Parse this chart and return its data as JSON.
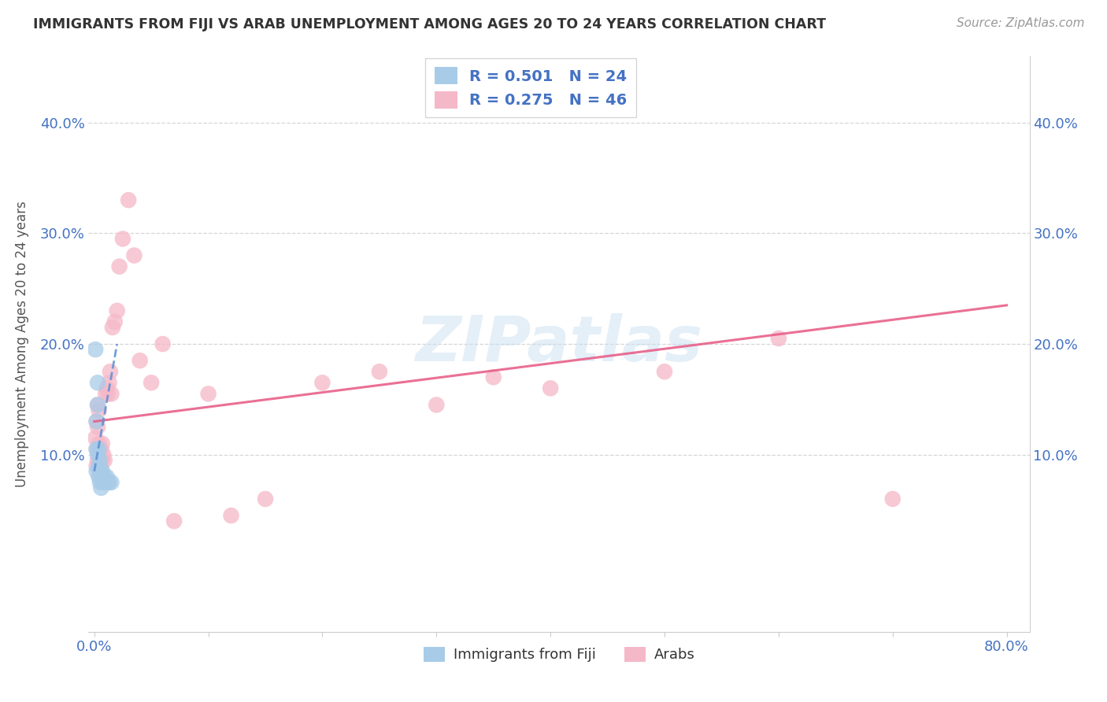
{
  "title": "IMMIGRANTS FROM FIJI VS ARAB UNEMPLOYMENT AMONG AGES 20 TO 24 YEARS CORRELATION CHART",
  "source": "Source: ZipAtlas.com",
  "ylabel": "Unemployment Among Ages 20 to 24 years",
  "fiji_color": "#a8cce8",
  "arab_color": "#f5b8c8",
  "fiji_line_color": "#5b8fd4",
  "arab_line_color": "#e8608a",
  "fiji_R": 0.501,
  "fiji_N": 24,
  "arab_R": 0.275,
  "arab_N": 46,
  "watermark": "ZIPatlas",
  "xlim_min": -0.005,
  "xlim_max": 0.82,
  "ylim_min": -0.06,
  "ylim_max": 0.46,
  "fiji_x": [
    0.001,
    0.002,
    0.002,
    0.002,
    0.003,
    0.003,
    0.003,
    0.004,
    0.004,
    0.004,
    0.005,
    0.005,
    0.005,
    0.006,
    0.006,
    0.007,
    0.007,
    0.008,
    0.009,
    0.01,
    0.011,
    0.012,
    0.013,
    0.015
  ],
  "fiji_y": [
    0.195,
    0.13,
    0.105,
    0.085,
    0.165,
    0.145,
    0.1,
    0.105,
    0.09,
    0.08,
    0.095,
    0.085,
    0.075,
    0.085,
    0.07,
    0.085,
    0.075,
    0.08,
    0.08,
    0.075,
    0.08,
    0.075,
    0.075,
    0.075
  ],
  "arab_x": [
    0.001,
    0.002,
    0.002,
    0.002,
    0.003,
    0.003,
    0.003,
    0.004,
    0.004,
    0.005,
    0.005,
    0.005,
    0.006,
    0.006,
    0.007,
    0.007,
    0.008,
    0.009,
    0.01,
    0.011,
    0.012,
    0.013,
    0.014,
    0.015,
    0.016,
    0.018,
    0.02,
    0.022,
    0.025,
    0.03,
    0.035,
    0.04,
    0.05,
    0.06,
    0.07,
    0.1,
    0.12,
    0.15,
    0.2,
    0.25,
    0.3,
    0.35,
    0.4,
    0.5,
    0.6,
    0.7
  ],
  "arab_y": [
    0.115,
    0.13,
    0.105,
    0.09,
    0.145,
    0.125,
    0.095,
    0.14,
    0.11,
    0.105,
    0.09,
    0.08,
    0.105,
    0.09,
    0.11,
    0.095,
    0.1,
    0.095,
    0.155,
    0.16,
    0.155,
    0.165,
    0.175,
    0.155,
    0.215,
    0.22,
    0.23,
    0.27,
    0.295,
    0.33,
    0.28,
    0.185,
    0.165,
    0.2,
    0.04,
    0.155,
    0.045,
    0.06,
    0.165,
    0.175,
    0.145,
    0.17,
    0.16,
    0.175,
    0.205,
    0.06
  ],
  "fiji_trend_x": [
    0.0,
    0.02
  ],
  "fiji_trend_y": [
    0.085,
    0.2
  ],
  "arab_trend_x": [
    0.0,
    0.8
  ],
  "arab_trend_y": [
    0.13,
    0.235
  ]
}
